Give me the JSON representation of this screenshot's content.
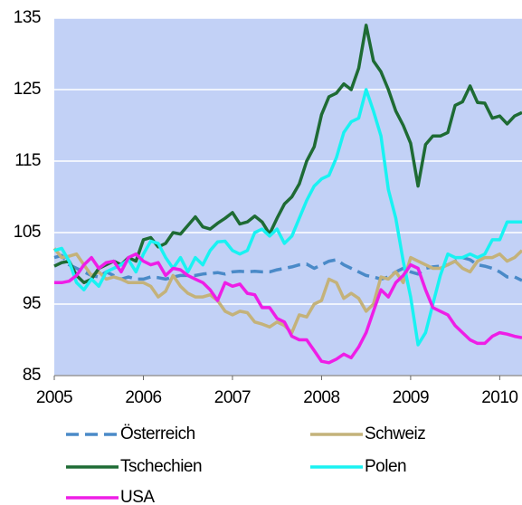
{
  "chart_data": {
    "type": "line",
    "x": [
      2005,
      2005.083,
      2005.167,
      2005.25,
      2005.333,
      2005.417,
      2005.5,
      2005.583,
      2005.667,
      2005.75,
      2005.833,
      2005.917,
      2006,
      2006.083,
      2006.167,
      2006.25,
      2006.333,
      2006.417,
      2006.5,
      2006.583,
      2006.667,
      2006.75,
      2006.833,
      2006.917,
      2007,
      2007.083,
      2007.167,
      2007.25,
      2007.333,
      2007.417,
      2007.5,
      2007.583,
      2007.667,
      2007.75,
      2007.833,
      2007.917,
      2008,
      2008.083,
      2008.167,
      2008.25,
      2008.333,
      2008.417,
      2008.5,
      2008.583,
      2008.667,
      2008.75,
      2008.833,
      2008.917,
      2009,
      2009.083,
      2009.167,
      2009.25,
      2009.333,
      2009.417,
      2009.5,
      2009.583,
      2009.667,
      2009.75,
      2009.833,
      2009.917,
      2010,
      2010.083,
      2010.167,
      2010.25
    ],
    "series": [
      {
        "name": "Österreich",
        "color": "#4a8ac8",
        "dash": true,
        "values": [
          101.5,
          101.8,
          100.5,
          100,
          99.5,
          99,
          98.8,
          99.5,
          99,
          98.5,
          98.8,
          98.5,
          98.5,
          98.8,
          98.7,
          98.5,
          98.8,
          99,
          99,
          99,
          99.2,
          99.3,
          99.4,
          99.2,
          99.5,
          99.6,
          99.5,
          99.6,
          99.5,
          99.5,
          99.8,
          100,
          100.2,
          100.5,
          100.6,
          100,
          100.5,
          101,
          101.2,
          100.5,
          100,
          99.5,
          99,
          98.8,
          98.5,
          98.8,
          99.5,
          100,
          99.5,
          99.2,
          100,
          100.2,
          100.3,
          100.5,
          101,
          101.5,
          101.2,
          100.5,
          100.3,
          100,
          99.5,
          98.8,
          98.8,
          98.3
        ]
      },
      {
        "name": "Schweiz",
        "color": "#c4b27a",
        "values": [
          102.8,
          101.5,
          101.7,
          102,
          100.5,
          99,
          99.5,
          98.5,
          98.8,
          98.5,
          98,
          98,
          98,
          97.5,
          96,
          96.8,
          99,
          97.5,
          96.5,
          96,
          96,
          96.3,
          95.5,
          94,
          93.5,
          94,
          93.8,
          92.5,
          92.2,
          91.8,
          92.5,
          92,
          91,
          93.5,
          93.2,
          95,
          95.5,
          98.5,
          98,
          95.8,
          96.5,
          95.8,
          94,
          95,
          98.8,
          98.5,
          99.5,
          98,
          101.5,
          101,
          100.5,
          100,
          100,
          100.5,
          101,
          100,
          99.5,
          101,
          101.5,
          101.5,
          102,
          101,
          101.5,
          102.5
        ]
      },
      {
        "name": "Tschechien",
        "color": "#1e6b34",
        "values": [
          100.3,
          100.8,
          101,
          99,
          98,
          98.5,
          100,
          100.5,
          101,
          100.5,
          101.5,
          101,
          104,
          104.3,
          103,
          103.5,
          105,
          104.8,
          106,
          107.2,
          105.8,
          105.5,
          106.3,
          107,
          107.8,
          106.2,
          106.5,
          107.3,
          106.5,
          104.8,
          107,
          109,
          110,
          111.8,
          115,
          117,
          121.5,
          124,
          124.5,
          125.8,
          125,
          128,
          134,
          129,
          127.5,
          125,
          122,
          120,
          117.5,
          111.5,
          117.3,
          118.5,
          118.5,
          119,
          122.8,
          123.3,
          125.5,
          123.2,
          123.1,
          121,
          121.3,
          120.2,
          121.3,
          121.8
        ]
      },
      {
        "name": "Polen",
        "color": "#19f2f2",
        "values": [
          102.5,
          102.8,
          101,
          98,
          97,
          98.5,
          97.5,
          99.5,
          100,
          100.5,
          101.2,
          99.5,
          102,
          103.8,
          103.5,
          101.5,
          100,
          101.5,
          99.5,
          101.5,
          100.5,
          102.5,
          103.7,
          103.8,
          102.5,
          102,
          102.5,
          105,
          105.5,
          104.5,
          105.5,
          103.5,
          104.5,
          107,
          109.5,
          111.5,
          112.5,
          113,
          115.5,
          119,
          120.5,
          121,
          125,
          122,
          118.5,
          111,
          107,
          101,
          96,
          89.3,
          91,
          95,
          99,
          102,
          101.5,
          101.5,
          102,
          101.5,
          102,
          104,
          104,
          106.5,
          106.5,
          106.5
        ]
      },
      {
        "name": "USA",
        "color": "#ee1ee6",
        "values": [
          98,
          98,
          98.2,
          99,
          100.5,
          101.5,
          100,
          100.8,
          101,
          99.5,
          101.5,
          102,
          101,
          100.5,
          100.8,
          99,
          100,
          99.8,
          99,
          98.5,
          98,
          97,
          95.5,
          98,
          97.5,
          97.8,
          96.5,
          96.3,
          94.5,
          94.5,
          93,
          92.5,
          90.5,
          90,
          90,
          88.5,
          87,
          86.8,
          87.3,
          88,
          87.5,
          89,
          91,
          94,
          97,
          96,
          98,
          99,
          100.5,
          100,
          97,
          94.5,
          94,
          93.5,
          92,
          91,
          90,
          89.5,
          89.5,
          90.5,
          91,
          90.8,
          90.5,
          90.3
        ]
      }
    ],
    "xlim": [
      2005,
      2010.25
    ],
    "xticks": [
      2005,
      2006,
      2007,
      2008,
      2009,
      2010
    ],
    "ylim": [
      85,
      135
    ],
    "yticks": [
      85,
      95,
      105,
      115,
      125,
      135
    ],
    "grid": true,
    "background": "#c2d1f6"
  }
}
